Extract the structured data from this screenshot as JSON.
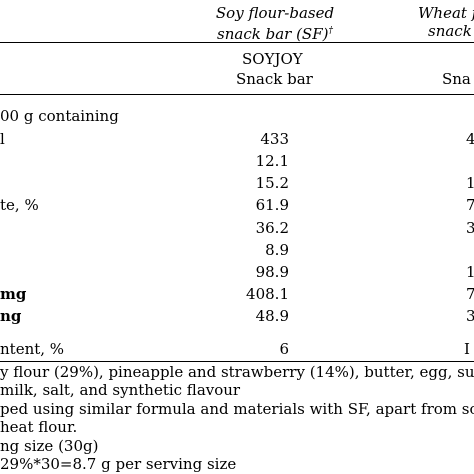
{
  "header": {
    "col1_line1": "Soy flour-based",
    "col1_line2": "snack bar (SF)",
    "col1_mark": "†",
    "col2_line1": "Wheat f",
    "col2_line2": "snack"
  },
  "subheader": {
    "col1_brand": "SOYJOY",
    "col1_type": "Snack bar",
    "col2_type": "Sna"
  },
  "section_label": "00 g containing",
  "rows": [
    {
      "label": "l",
      "col1": "433",
      "col2": "4",
      "bold": false
    },
    {
      "label": "",
      "col1": "12.1",
      "col2": "",
      "bold": false
    },
    {
      "label": "",
      "col1": "15.2",
      "col2": "1",
      "bold": false
    },
    {
      "label": "te, %",
      "col1": "61.9",
      "col2": "7",
      "bold": false
    },
    {
      "label": "",
      "col1": "36.2",
      "col2": "3",
      "bold": false
    },
    {
      "label": "",
      "col1": "8.9",
      "col2": "",
      "bold": false
    },
    {
      "label": "",
      "col1": "98.9",
      "col2": "1",
      "bold": false
    },
    {
      "label": "mg",
      "col1": "408.1",
      "col2": "7",
      "bold": true
    },
    {
      "label": "ng",
      "col1": "48.9",
      "col2": "3",
      "bold": true
    }
  ],
  "content_row": {
    "label": "ntent, %",
    "col1": "6",
    "col2": "I"
  },
  "footnotes": [
    "y flour (29%), pineapple and strawberry (14%), butter, egg, sug",
    "milk, salt, and synthetic flavour",
    "ped using similar formula and materials with SF, apart from so",
    "heat flour.",
    "ng size (30g)",
    "29%*30=8.7 g per serving size"
  ]
}
